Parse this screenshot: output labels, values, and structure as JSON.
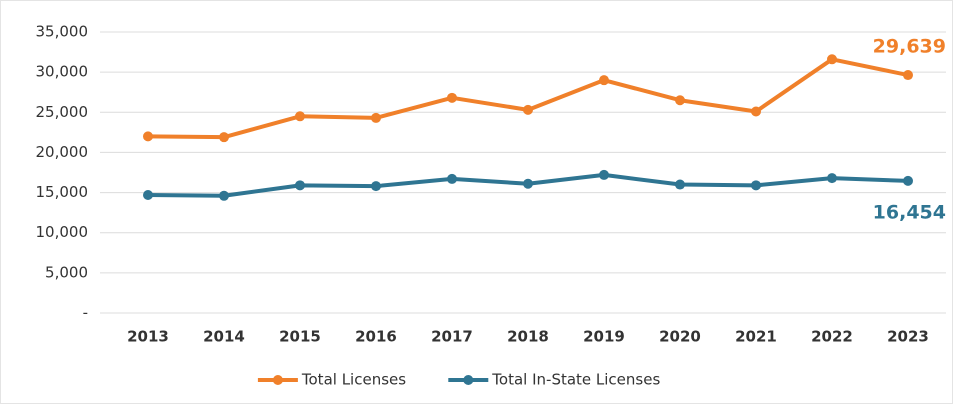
{
  "chart_data": {
    "type": "line",
    "categories": [
      "2013",
      "2014",
      "2015",
      "2016",
      "2017",
      "2018",
      "2019",
      "2020",
      "2021",
      "2022",
      "2023"
    ],
    "series": [
      {
        "name": "Total Licenses",
        "color": "#f0802a",
        "values": [
          22000,
          21900,
          24500,
          24300,
          26800,
          25300,
          29000,
          26500,
          25100,
          31600,
          29639
        ],
        "value_labels": [
          null,
          null,
          null,
          null,
          null,
          null,
          null,
          null,
          null,
          null,
          "29,639"
        ]
      },
      {
        "name": "Total In-State Licenses",
        "color": "#2f7592",
        "values": [
          14700,
          14600,
          15900,
          15800,
          16700,
          16100,
          17200,
          16000,
          15900,
          16800,
          16454
        ],
        "value_labels": [
          null,
          null,
          null,
          null,
          null,
          null,
          null,
          null,
          null,
          null,
          "16,454"
        ]
      }
    ],
    "ylim": [
      0,
      35000
    ],
    "yticks": [
      {
        "value": 0,
        "label": "-"
      },
      {
        "value": 5000,
        "label": "5,000"
      },
      {
        "value": 10000,
        "label": "10,000"
      },
      {
        "value": 15000,
        "label": "15,000"
      },
      {
        "value": 20000,
        "label": "20,000"
      },
      {
        "value": 25000,
        "label": "25,000"
      },
      {
        "value": 30000,
        "label": "30,000"
      },
      {
        "value": 35000,
        "label": "35,000"
      }
    ],
    "grid": true,
    "legend": "bottom"
  }
}
